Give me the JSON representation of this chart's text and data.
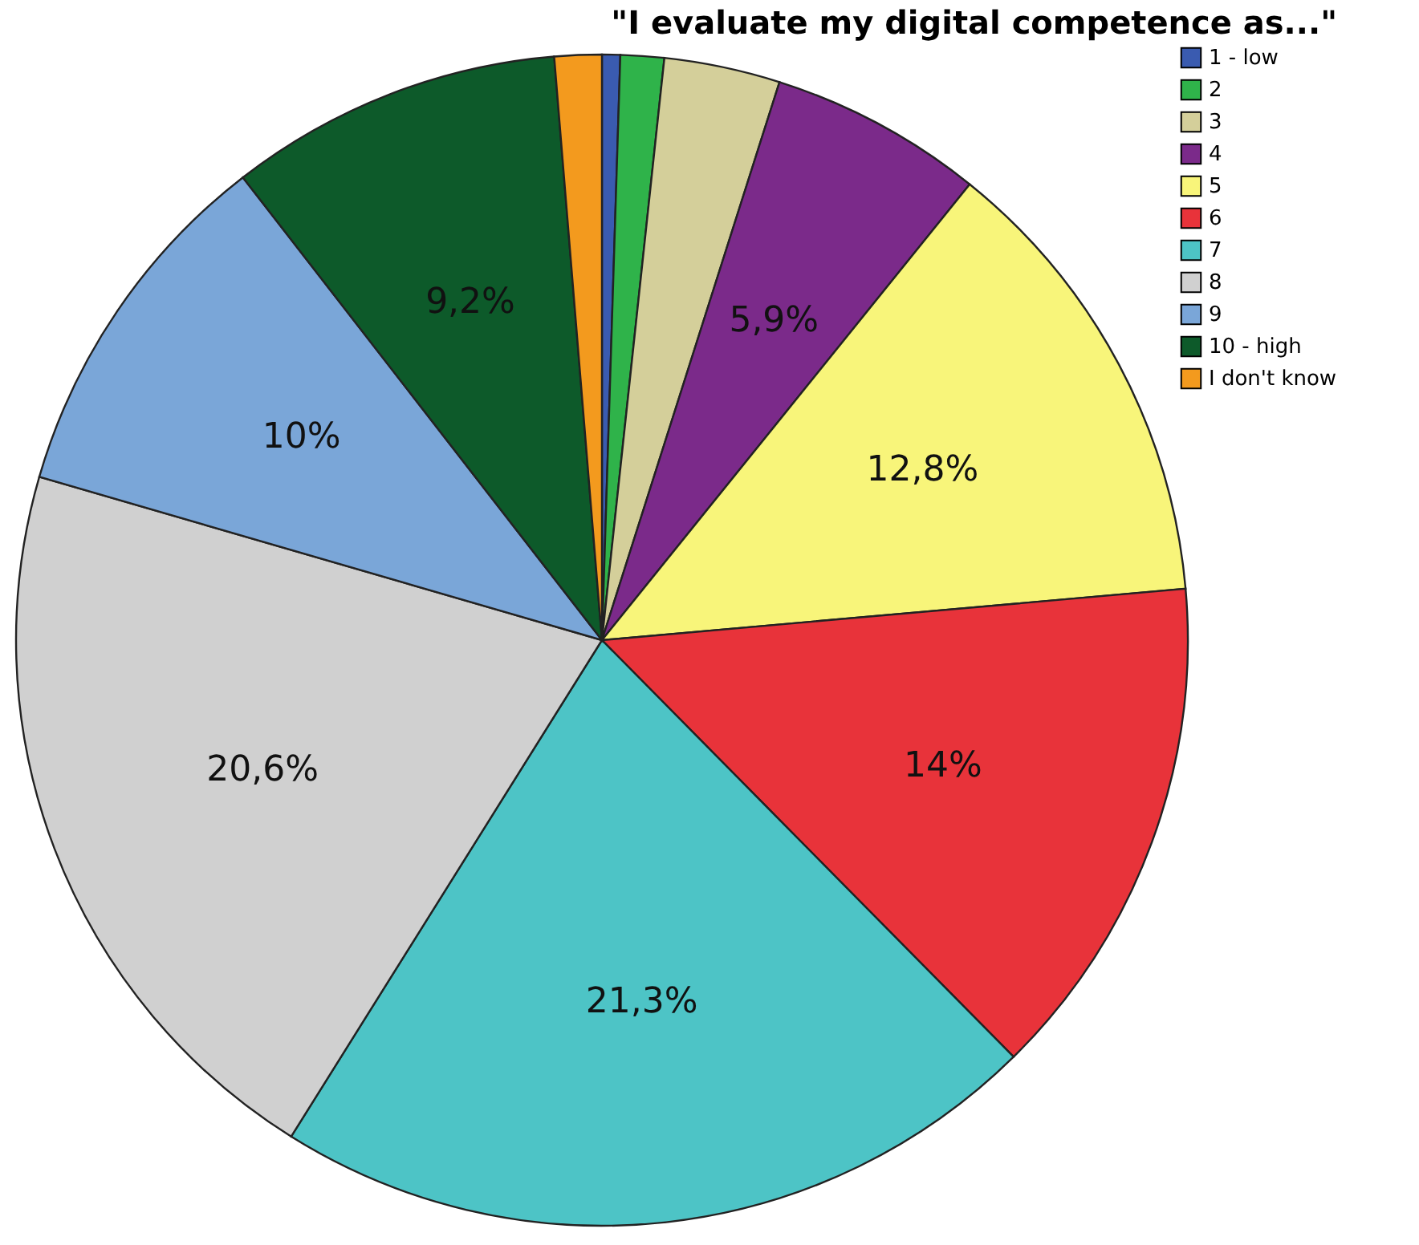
{
  "chart_data": {
    "type": "pie",
    "title": "\"I evaluate my digital competence as...\"",
    "categories": [
      "1 - low",
      "2",
      "3",
      "4",
      "5",
      "6",
      "7",
      "8",
      "9",
      "10 - high",
      "I don't know"
    ],
    "values": [
      0.5,
      1.2,
      3.2,
      5.9,
      12.8,
      14,
      21.3,
      20.6,
      10,
      9.2,
      1.3
    ],
    "value_labels": [
      null,
      null,
      null,
      "5,9%",
      "12,8%",
      "14%",
      "21,3%",
      "20,6%",
      "10%",
      "9,2%",
      null
    ],
    "colors": [
      "#3a5bb0",
      "#2fb34a",
      "#d4cf9a",
      "#7b2a8a",
      "#f8f57a",
      "#e8333a",
      "#4dc4c6",
      "#d0d0d0",
      "#7aa6d8",
      "#0d5a2a",
      "#f39a1e"
    ],
    "legend": "top right"
  }
}
